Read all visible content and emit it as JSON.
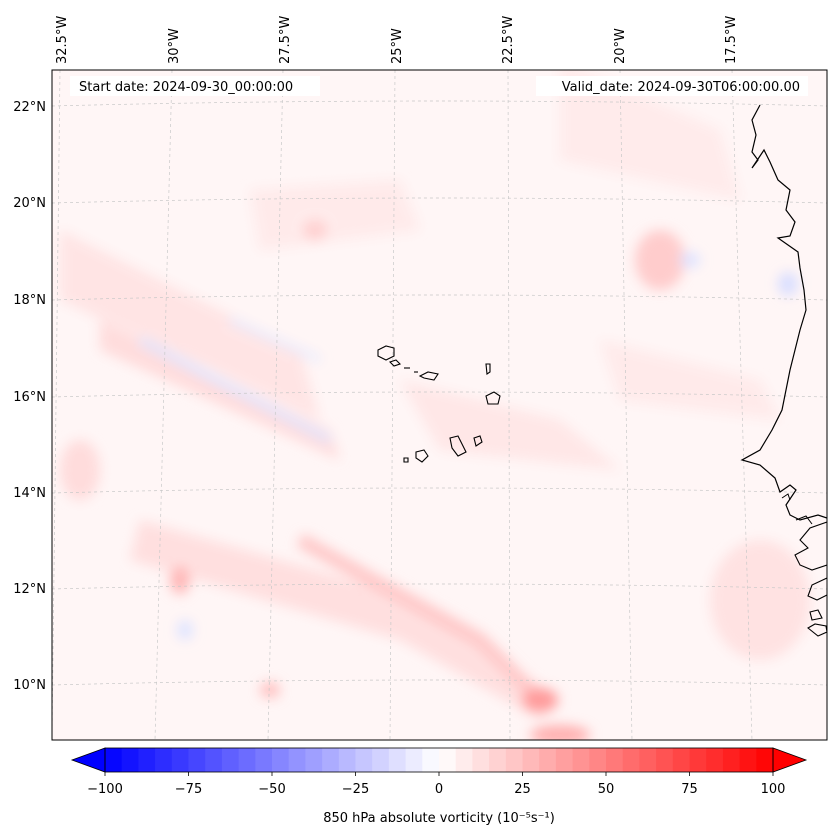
{
  "header": {
    "start_date": "Start date: 2024-09-30_00:00:00",
    "valid_date": "Valid_date: 2024-09-30T06:00:00.00"
  },
  "lon_labels": [
    "32.5°W",
    "30°W",
    "27.5°W",
    "25°W",
    "22.5°W",
    "20°W",
    "17.5°W"
  ],
  "lat_labels": [
    "22°N",
    "20°N",
    "18°N",
    "16°N",
    "14°N",
    "12°N",
    "10°N"
  ],
  "colorbar": {
    "ticks": [
      "−100",
      "−75",
      "−50",
      "−25",
      "0",
      "25",
      "50",
      "75",
      "100"
    ],
    "label": "850 hPa absolute vorticity (10⁻⁵s⁻¹)",
    "min_color": "#0000ff",
    "mid_color": "#ffffff",
    "max_color": "#ff0000"
  },
  "colors": {
    "coastline": "#000000",
    "gridline": "#c8c8c8",
    "field_background": "#fff6f6"
  }
}
